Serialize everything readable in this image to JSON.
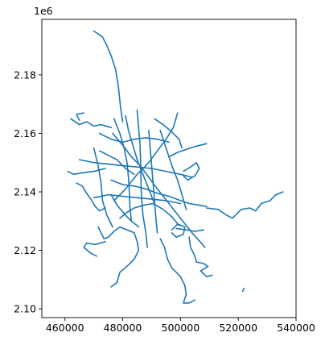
{
  "chart_data": {
    "type": "line",
    "title": "",
    "xlabel": "",
    "ylabel": "",
    "xlim": [
      452000,
      540000
    ],
    "ylim": [
      2097000,
      2199000
    ],
    "x_ticks": [
      460000,
      480000,
      500000,
      520000,
      540000
    ],
    "x_tick_labels": [
      "460000",
      "480000",
      "500000",
      "520000",
      "540000"
    ],
    "y_ticks": [
      2100000,
      2120000,
      2140000,
      2160000,
      2180000
    ],
    "y_tick_labels": [
      "2.10",
      "2.12",
      "2.14",
      "2.16",
      "2.18"
    ],
    "y_offset_label": "1e6",
    "grid": false,
    "legend": "none",
    "color": "#1f77b4",
    "series": [
      {
        "values": [
          [
            470000,
            2195000
          ],
          [
            473000,
            2193000
          ],
          [
            474500,
            2190000
          ],
          [
            476000,
            2186500
          ],
          [
            477500,
            2182000
          ],
          [
            478500,
            2176000
          ],
          [
            479300,
            2168500
          ],
          [
            480000,
            2164000
          ]
        ]
      },
      {
        "values": [
          [
            476500,
            2160000
          ],
          [
            480000,
            2156000
          ],
          [
            483000,
            2152000
          ],
          [
            486000,
            2149000
          ],
          [
            489000,
            2145000
          ],
          [
            492000,
            2141000
          ],
          [
            496000,
            2136000
          ],
          [
            500000,
            2131000
          ],
          [
            504000,
            2126000
          ],
          [
            508500,
            2121000
          ]
        ]
      },
      {
        "values": [
          [
            477000,
            2137000
          ],
          [
            481000,
            2141000
          ],
          [
            485000,
            2146000
          ],
          [
            489000,
            2150000
          ],
          [
            492000,
            2154000
          ],
          [
            495000,
            2158000
          ],
          [
            497500,
            2162000
          ],
          [
            499000,
            2167000
          ]
        ]
      },
      {
        "values": [
          [
            465000,
            2151000
          ],
          [
            470000,
            2150000
          ],
          [
            475000,
            2149500
          ],
          [
            480000,
            2149000
          ],
          [
            485000,
            2148500
          ],
          [
            490000,
            2148000
          ],
          [
            495000,
            2147000
          ],
          [
            500000,
            2146000
          ],
          [
            504000,
            2145000
          ]
        ]
      },
      {
        "values": [
          [
            485000,
            2168000
          ],
          [
            485500,
            2162000
          ],
          [
            486000,
            2156000
          ],
          [
            486200,
            2150000
          ],
          [
            486300,
            2144000
          ],
          [
            486500,
            2138000
          ],
          [
            487000,
            2132000
          ],
          [
            488000,
            2126000
          ],
          [
            488500,
            2121000
          ]
        ]
      },
      {
        "values": [
          [
            477000,
            2165000
          ],
          [
            479000,
            2160000
          ],
          [
            480500,
            2155000
          ],
          [
            481500,
            2150000
          ],
          [
            482000,
            2145000
          ],
          [
            482300,
            2140000
          ],
          [
            482500,
            2135000
          ],
          [
            483000,
            2130000
          ]
        ]
      },
      {
        "values": [
          [
            472000,
            2160000
          ],
          [
            476000,
            2158000
          ],
          [
            480000,
            2157000
          ],
          [
            484000,
            2158000
          ],
          [
            488000,
            2158500
          ],
          [
            492000,
            2158000
          ],
          [
            496000,
            2157000
          ]
        ]
      },
      {
        "values": [
          [
            470000,
            2138000
          ],
          [
            475000,
            2139000
          ],
          [
            480000,
            2138500
          ],
          [
            485000,
            2138000
          ],
          [
            490000,
            2137500
          ],
          [
            495000,
            2137000
          ],
          [
            500000,
            2136000
          ]
        ]
      },
      {
        "values": [
          [
            496000,
            2152000
          ],
          [
            499000,
            2153500
          ],
          [
            502000,
            2154500
          ],
          [
            505000,
            2155500
          ],
          [
            509000,
            2156500
          ]
        ]
      },
      {
        "values": [
          [
            476000,
            2144000
          ],
          [
            480000,
            2142500
          ],
          [
            484000,
            2142000
          ],
          [
            488000,
            2141000
          ],
          [
            492000,
            2139500
          ],
          [
            496000,
            2138500
          ],
          [
            500000,
            2137000
          ],
          [
            503000,
            2136000
          ],
          [
            506000,
            2135500
          ],
          [
            509000,
            2135000
          ]
        ]
      },
      {
        "values": [
          [
            509000,
            2134500
          ],
          [
            513000,
            2134000
          ],
          [
            516000,
            2132000
          ],
          [
            518000,
            2131000
          ],
          [
            521000,
            2134000
          ],
          [
            524000,
            2134500
          ],
          [
            526000,
            2133500
          ],
          [
            528000,
            2136000
          ],
          [
            531000,
            2137000
          ],
          [
            533000,
            2139000
          ],
          [
            535500,
            2140000
          ]
        ]
      },
      {
        "values": [
          [
            464000,
            2143000
          ],
          [
            466000,
            2142000
          ],
          [
            467500,
            2139500
          ],
          [
            469000,
            2137500
          ],
          [
            470500,
            2135000
          ],
          [
            472000,
            2133500
          ],
          [
            474000,
            2134500
          ]
        ]
      },
      {
        "values": [
          [
            471500,
            2128000
          ],
          [
            473500,
            2124000
          ],
          [
            475000,
            2124500
          ],
          [
            477000,
            2126500
          ],
          [
            479000,
            2128000
          ],
          [
            481500,
            2127000
          ],
          [
            484000,
            2126000
          ]
        ]
      },
      {
        "values": [
          [
            484000,
            2126000
          ],
          [
            485000,
            2123000
          ],
          [
            485500,
            2120000
          ],
          [
            484000,
            2117000
          ],
          [
            482000,
            2115000
          ],
          [
            479000,
            2112500
          ],
          [
            478000,
            2109000
          ],
          [
            476000,
            2107500
          ]
        ]
      },
      {
        "values": [
          [
            493000,
            2124000
          ],
          [
            494500,
            2121000
          ],
          [
            495500,
            2117000
          ],
          [
            497000,
            2114000
          ],
          [
            500000,
            2111000
          ],
          [
            501500,
            2108000
          ],
          [
            502000,
            2105000
          ],
          [
            501000,
            2102000
          ],
          [
            503000,
            2102000
          ],
          [
            505000,
            2103000
          ]
        ]
      },
      {
        "values": [
          [
            503000,
            2124500
          ],
          [
            503500,
            2121000
          ],
          [
            505000,
            2118000
          ],
          [
            505500,
            2116000
          ],
          [
            508000,
            2115500
          ],
          [
            509500,
            2114500
          ],
          [
            507000,
            2113000
          ],
          [
            509000,
            2111000
          ],
          [
            511000,
            2111500
          ]
        ]
      },
      {
        "values": [
          [
            474000,
            2123000
          ],
          [
            470500,
            2122000
          ],
          [
            467500,
            2122500
          ],
          [
            466500,
            2121000
          ],
          [
            469000,
            2119000
          ],
          [
            471000,
            2118000
          ]
        ]
      },
      {
        "values": [
          [
            462000,
            2165000
          ],
          [
            465000,
            2163000
          ],
          [
            467500,
            2164000
          ],
          [
            470000,
            2162500
          ],
          [
            472500,
            2163000
          ],
          [
            476000,
            2162000
          ]
        ]
      },
      {
        "values": [
          [
            461000,
            2147000
          ],
          [
            463000,
            2146000
          ],
          [
            466000,
            2146500
          ],
          [
            470000,
            2147000
          ],
          [
            474000,
            2148000
          ]
        ]
      },
      {
        "values": [
          [
            465000,
            2164500
          ],
          [
            464000,
            2166500
          ],
          [
            466500,
            2167000
          ]
        ]
      },
      {
        "values": [
          [
            498500,
            2127500
          ],
          [
            502000,
            2127000
          ],
          [
            505000,
            2126500
          ],
          [
            508000,
            2127000
          ]
        ]
      },
      {
        "values": [
          [
            521500,
            2106000
          ],
          [
            522000,
            2107000
          ]
        ]
      },
      {
        "values": [
          [
            491000,
            2165000
          ],
          [
            494000,
            2163000
          ],
          [
            497000,
            2160500
          ],
          [
            499500,
            2158000
          ],
          [
            500500,
            2155000
          ]
        ]
      },
      {
        "values": [
          [
            472000,
            2154000
          ],
          [
            475000,
            2152500
          ],
          [
            478000,
            2151000
          ],
          [
            481000,
            2148000
          ],
          [
            484000,
            2146000
          ]
        ]
      },
      {
        "values": [
          [
            479000,
            2131000
          ],
          [
            481500,
            2133000
          ],
          [
            484000,
            2134500
          ],
          [
            487500,
            2135500
          ],
          [
            490500,
            2136000
          ],
          [
            494000,
            2134000
          ],
          [
            497000,
            2131500
          ],
          [
            499500,
            2128500
          ]
        ]
      },
      {
        "values": [
          [
            489000,
            2161000
          ],
          [
            489500,
            2155000
          ],
          [
            490000,
            2149000
          ],
          [
            490500,
            2143000
          ],
          [
            491000,
            2137000
          ],
          [
            491500,
            2131000
          ],
          [
            492000,
            2126000
          ]
        ]
      },
      {
        "values": [
          [
            481000,
            2166000
          ],
          [
            482000,
            2161000
          ],
          [
            483500,
            2156000
          ],
          [
            485000,
            2151000
          ],
          [
            487000,
            2146000
          ],
          [
            489000,
            2141000
          ],
          [
            491000,
            2136000
          ]
        ]
      },
      {
        "values": [
          [
            476000,
            2139000
          ],
          [
            478000,
            2135500
          ],
          [
            481000,
            2132000
          ],
          [
            483000,
            2130000
          ],
          [
            485500,
            2128000
          ]
        ]
      },
      {
        "values": [
          [
            501000,
            2147000
          ],
          [
            503500,
            2148500
          ],
          [
            505500,
            2150000
          ],
          [
            506500,
            2148000
          ],
          [
            505000,
            2145500
          ],
          [
            502500,
            2144000
          ],
          [
            501000,
            2145500
          ]
        ]
      },
      {
        "values": [
          [
            497000,
            2127000
          ],
          [
            499000,
            2129000
          ],
          [
            501500,
            2128000
          ],
          [
            501000,
            2125500
          ],
          [
            498500,
            2124500
          ],
          [
            497000,
            2126000
          ]
        ]
      },
      {
        "values": [
          [
            470000,
            2155000
          ],
          [
            471500,
            2149000
          ],
          [
            472500,
            2143000
          ],
          [
            473000,
            2137000
          ],
          [
            474500,
            2132000
          ],
          [
            476500,
            2128000
          ]
        ]
      },
      {
        "values": [
          [
            493000,
            2161000
          ],
          [
            495000,
            2155000
          ],
          [
            497000,
            2149000
          ],
          [
            499000,
            2144000
          ],
          [
            500500,
            2139000
          ],
          [
            502000,
            2134000
          ]
        ]
      }
    ]
  }
}
